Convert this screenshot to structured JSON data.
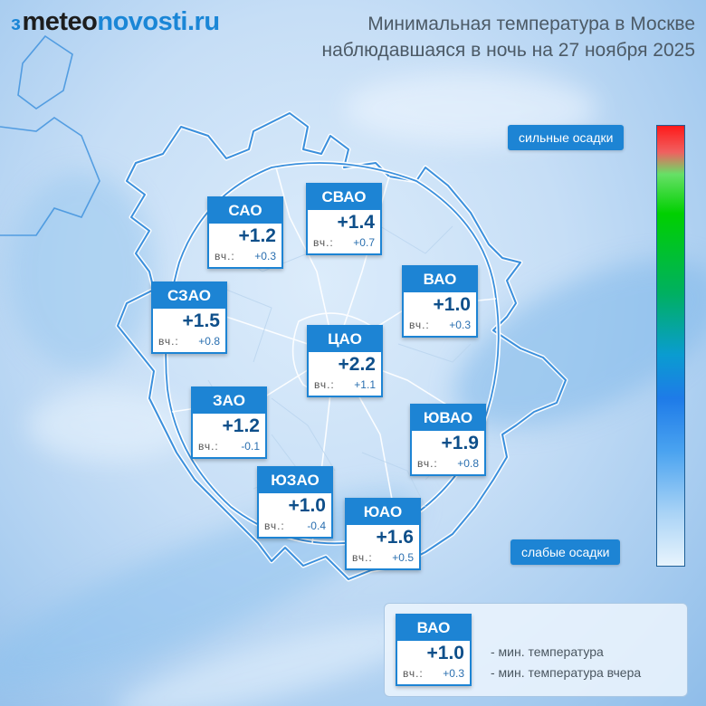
{
  "brand": {
    "mark": "ɜ",
    "name_part1": "meteo",
    "name_part2": "novosti.ru"
  },
  "title": {
    "line1": "Минимальная температура в Москве",
    "line2": "наблюдавшаяся в ночь на 27 ноября 2025"
  },
  "districts": [
    {
      "name": "САО",
      "temp": "+1.2",
      "yesterday_label": "вч.:",
      "yesterday": "+0.3"
    },
    {
      "name": "СВАО",
      "temp": "+1.4",
      "yesterday_label": "вч.:",
      "yesterday": "+0.7"
    },
    {
      "name": "ВАО",
      "temp": "+1.0",
      "yesterday_label": "вч.:",
      "yesterday": "+0.3"
    },
    {
      "name": "СЗАО",
      "temp": "+1.5",
      "yesterday_label": "вч.:",
      "yesterday": "+0.8"
    },
    {
      "name": "ЦАО",
      "temp": "+2.2",
      "yesterday_label": "вч.:",
      "yesterday": "+1.1"
    },
    {
      "name": "ЗАО",
      "temp": "+1.2",
      "yesterday_label": "вч.:",
      "yesterday": "-0.1"
    },
    {
      "name": "ЮВАО",
      "temp": "+1.9",
      "yesterday_label": "вч.:",
      "yesterday": "+0.8"
    },
    {
      "name": "ЮЗАО",
      "temp": "+1.0",
      "yesterday_label": "вч.:",
      "yesterday": "-0.4"
    },
    {
      "name": "ЮАО",
      "temp": "+1.6",
      "yesterday_label": "вч.:",
      "yesterday": "+0.5"
    }
  ],
  "scale": {
    "top_label": "сильные осадки",
    "bottom_label": "слабые осадки"
  },
  "legend": {
    "card": {
      "name": "ВАО",
      "temp": "+1.0",
      "yesterday_label": "вч.:",
      "yesterday": "+0.3"
    },
    "line1": "- мин. температура",
    "line2": "- мин. температура вчера"
  },
  "colors": {
    "accent": "#1d84d4",
    "boundary": "#ffffff"
  }
}
